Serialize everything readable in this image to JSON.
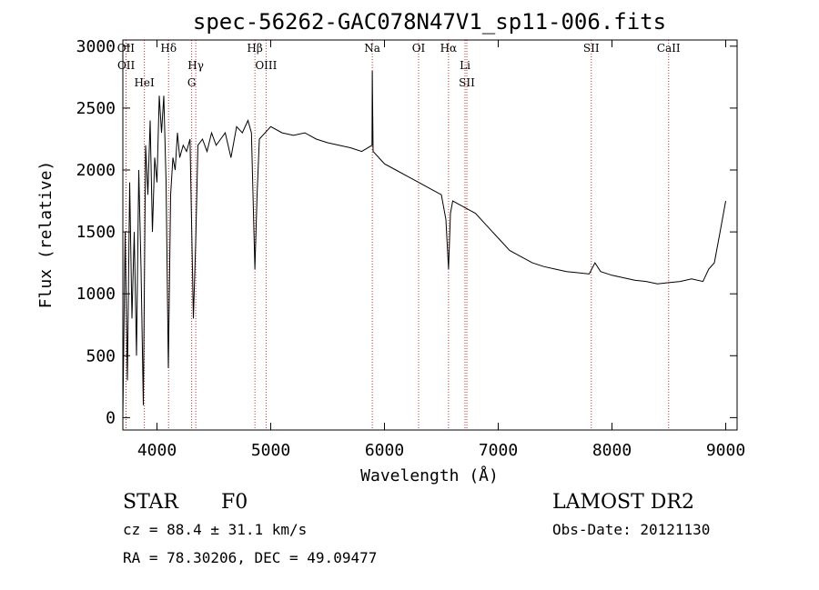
{
  "chart_data": {
    "type": "line",
    "title": "spec-56262-GAC078N47V1_sp11-006.fits",
    "xlabel": "Wavelength (Å)",
    "ylabel": "Flux (relative)",
    "xlim": [
      3700,
      9100
    ],
    "ylim": [
      -100,
      3050
    ],
    "x_ticks": [
      4000,
      5000,
      6000,
      7000,
      8000,
      9000
    ],
    "x_tick_labels": [
      "4000",
      "5000",
      "6000",
      "7000",
      "8000",
      "9000"
    ],
    "y_ticks": [
      0,
      500,
      1000,
      1500,
      2000,
      2500,
      3000
    ],
    "y_tick_labels": [
      "0",
      "500",
      "1000",
      "1500",
      "2000",
      "2500",
      "3000"
    ],
    "spectrum": {
      "wavelength": [
        3700,
        3720,
        3740,
        3760,
        3780,
        3800,
        3820,
        3840,
        3860,
        3880,
        3900,
        3920,
        3940,
        3960,
        3980,
        4000,
        4020,
        4040,
        4060,
        4080,
        4100,
        4120,
        4140,
        4160,
        4180,
        4200,
        4230,
        4260,
        4290,
        4320,
        4340,
        4360,
        4400,
        4440,
        4480,
        4520,
        4560,
        4600,
        4650,
        4700,
        4750,
        4800,
        4830,
        4861,
        4880,
        4900,
        4950,
        5000,
        5100,
        5200,
        5300,
        5400,
        5500,
        5600,
        5700,
        5800,
        5890,
        5893,
        5900,
        5950,
        6000,
        6100,
        6200,
        6300,
        6400,
        6500,
        6540,
        6563,
        6580,
        6600,
        6700,
        6800,
        6900,
        7000,
        7100,
        7200,
        7300,
        7400,
        7500,
        7600,
        7700,
        7800,
        7850,
        7900,
        8000,
        8100,
        8200,
        8300,
        8400,
        8500,
        8600,
        8700,
        8800,
        8850,
        8900,
        8950,
        9000
      ],
      "flux": [
        0,
        1500,
        300,
        1900,
        800,
        1500,
        500,
        2000,
        1200,
        100,
        2200,
        1800,
        2400,
        1500,
        2100,
        1900,
        2600,
        2300,
        2600,
        1900,
        400,
        1800,
        2100,
        2000,
        2300,
        2100,
        2200,
        2150,
        2250,
        800,
        1400,
        2200,
        2250,
        2150,
        2300,
        2200,
        2250,
        2300,
        2100,
        2350,
        2300,
        2400,
        2300,
        1200,
        1800,
        2250,
        2300,
        2350,
        2300,
        2280,
        2300,
        2250,
        2220,
        2200,
        2180,
        2150,
        2200,
        2800,
        2150,
        2100,
        2050,
        2000,
        1950,
        1900,
        1850,
        1800,
        1600,
        1200,
        1650,
        1750,
        1700,
        1650,
        1550,
        1450,
        1350,
        1300,
        1250,
        1220,
        1200,
        1180,
        1170,
        1160,
        1250,
        1180,
        1150,
        1130,
        1110,
        1100,
        1080,
        1090,
        1100,
        1120,
        1100,
        1200,
        1250,
        1500,
        1750
      ]
    },
    "emission_lines": [
      {
        "label": "OII",
        "wavelength": 3727
      },
      {
        "label": "OII",
        "wavelength": 3729
      },
      {
        "label": "HeI",
        "wavelength": 3889
      },
      {
        "label": "Hδ",
        "wavelength": 4102
      },
      {
        "label": "Hγ",
        "wavelength": 4341
      },
      {
        "label": "G",
        "wavelength": 4305
      },
      {
        "label": "Hβ",
        "wavelength": 4861
      },
      {
        "label": "OIII",
        "wavelength": 4959
      },
      {
        "label": "Na",
        "wavelength": 5893
      },
      {
        "label": "OI",
        "wavelength": 6300
      },
      {
        "label": "Hα",
        "wavelength": 6563
      },
      {
        "label": "Li",
        "wavelength": 6708
      },
      {
        "label": "SII",
        "wavelength": 6724
      },
      {
        "label": "SII",
        "wavelength": 7818
      },
      {
        "label": "CaII",
        "wavelength": 8498
      }
    ]
  },
  "info": {
    "object_class": "STAR",
    "subclass": "F0",
    "survey": "LAMOST DR2",
    "cz": "cz = 88.4 ± 31.1 km/s",
    "obs_date": "Obs-Date: 20121130",
    "coords": "RA =  78.30206, DEC =  49.09477"
  },
  "colors": {
    "spectrum": "#000000",
    "line_marker": "#c83232"
  }
}
